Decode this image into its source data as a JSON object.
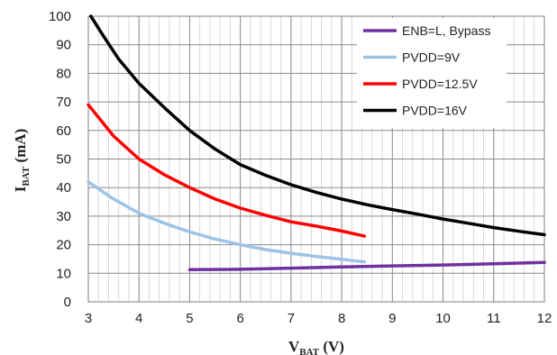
{
  "chart_data": {
    "type": "line",
    "xlabel": {
      "main": "V",
      "sub": "BAT",
      "unit": " (V)"
    },
    "ylabel": {
      "main": "I",
      "sub": "BAT",
      "unit": " (mA)"
    },
    "xlim": [
      3,
      12
    ],
    "ylim": [
      0,
      100
    ],
    "xticks": [
      3,
      4,
      5,
      6,
      7,
      8,
      9,
      10,
      11,
      12
    ],
    "yticks": [
      0,
      10,
      20,
      30,
      40,
      50,
      60,
      70,
      80,
      90,
      100
    ],
    "grid": true,
    "minor_grid_x": true,
    "legend_position": "top-right",
    "series": [
      {
        "name": "ENB=L, Bypass",
        "color": "#7030A0",
        "x": [
          5,
          6,
          7,
          8,
          9,
          10,
          11,
          12
        ],
        "y": [
          11.3,
          11.4,
          11.8,
          12.2,
          12.6,
          12.9,
          13.3,
          13.8
        ]
      },
      {
        "name": "PVDD=9V",
        "color": "#9DC3E6",
        "x": [
          3,
          3.5,
          4,
          4.5,
          5,
          5.5,
          6,
          6.5,
          7,
          7.5,
          8,
          8.45
        ],
        "y": [
          42,
          36,
          31,
          27.5,
          24.5,
          22,
          20,
          18.3,
          17,
          15.9,
          14.9,
          14
        ]
      },
      {
        "name": "PVDD=12.5V",
        "color": "#FF0000",
        "x": [
          3,
          3.5,
          4,
          4.5,
          5,
          5.5,
          6,
          6.5,
          7,
          7.5,
          8,
          8.45
        ],
        "y": [
          69,
          58,
          50,
          44.5,
          40,
          36,
          32.8,
          30.3,
          28,
          26.5,
          24.8,
          23
        ]
      },
      {
        "name": "PVDD=16V",
        "color": "#000000",
        "x": [
          3.05,
          3.3,
          3.6,
          4,
          4.5,
          5,
          5.5,
          6,
          6.5,
          7,
          7.5,
          8,
          8.5,
          9,
          9.5,
          10,
          10.5,
          11,
          11.5,
          12
        ],
        "y": [
          100,
          93,
          85,
          76.5,
          68,
          60,
          53.5,
          48,
          44.3,
          41,
          38.3,
          36,
          34,
          32.3,
          30.7,
          29,
          27.5,
          26,
          24.7,
          23.5
        ]
      }
    ]
  }
}
